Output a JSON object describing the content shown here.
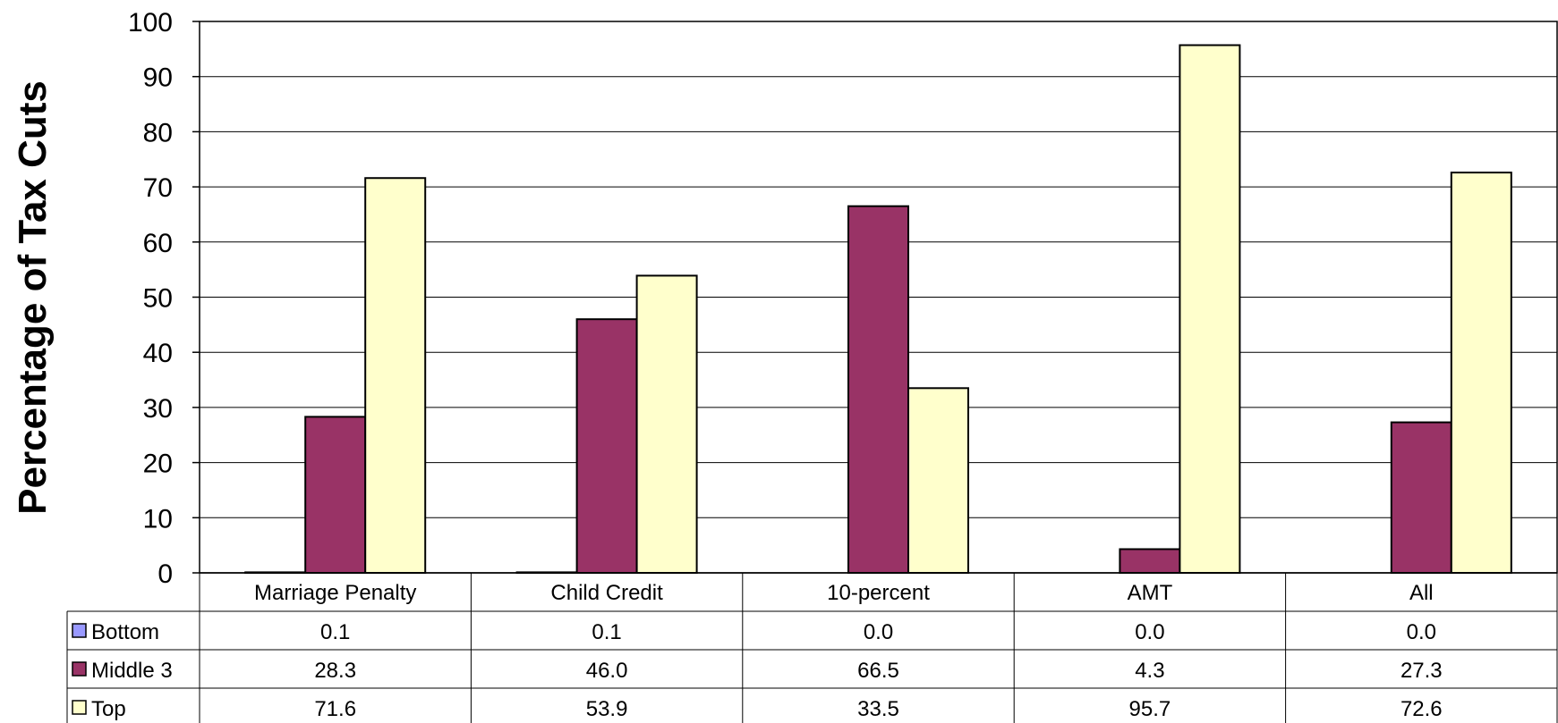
{
  "chart_data": {
    "type": "bar",
    "title": "",
    "xlabel": "",
    "ylabel": "Percentage of Tax Cuts",
    "ylim": [
      0,
      100
    ],
    "yticks": [
      0,
      10,
      20,
      30,
      40,
      50,
      60,
      70,
      80,
      90,
      100
    ],
    "grid": true,
    "legend": "data-table-left",
    "categories": [
      "Marriage Penalty",
      "Child Credit",
      "10-percent",
      "AMT",
      "All"
    ],
    "series": [
      {
        "name": "Bottom",
        "color": "#9999ff",
        "values": [
          0.1,
          0.1,
          0.0,
          0.0,
          0.0
        ],
        "labels": [
          "0.1",
          "0.1",
          "0.0",
          "0.0",
          "0.0"
        ]
      },
      {
        "name": "Middle 3",
        "color": "#993366",
        "values": [
          28.3,
          46.0,
          66.5,
          4.3,
          27.3
        ],
        "labels": [
          "28.3",
          "46.0",
          "66.5",
          "4.3",
          "27.3"
        ]
      },
      {
        "name": "Top",
        "color": "#ffffcc",
        "values": [
          71.6,
          53.9,
          33.5,
          95.7,
          72.6
        ],
        "labels": [
          "71.6",
          "53.9",
          "33.5",
          "95.7",
          "72.6"
        ]
      }
    ]
  }
}
